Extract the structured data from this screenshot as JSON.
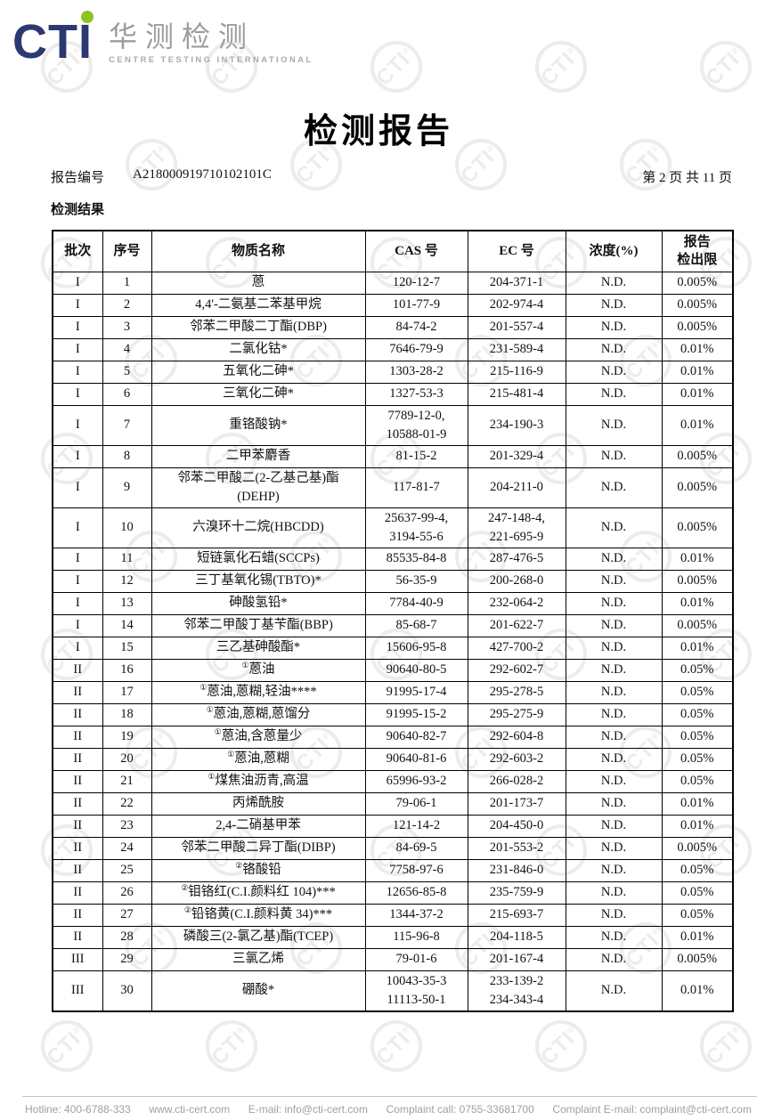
{
  "brand": {
    "acronym": "CTI",
    "name_cn": "华测检测",
    "name_en": "CENTRE TESTING INTERNATIONAL",
    "navy_color": "#2b3871",
    "green_color": "#8fc31f"
  },
  "doc": {
    "title": "检测报告",
    "report_no_label": "报告编号",
    "report_no": "A218000919710102101C",
    "page_info": "第 2 页  共 11 页",
    "section_title": "检测结果"
  },
  "table": {
    "headers": [
      "批次",
      "序号",
      "物质名称",
      "CAS 号",
      "EC 号",
      "浓度(%)",
      "报告\n检出限"
    ],
    "rows": [
      {
        "batch": "I",
        "no": "1",
        "sup": "",
        "name": "蒽",
        "cas": "120-12-7",
        "ec": "204-371-1",
        "conc": "N.D.",
        "limit": "0.005%"
      },
      {
        "batch": "I",
        "no": "2",
        "sup": "",
        "name": "4,4'-二氨基二苯基甲烷",
        "cas": "101-77-9",
        "ec": "202-974-4",
        "conc": "N.D.",
        "limit": "0.005%"
      },
      {
        "batch": "I",
        "no": "3",
        "sup": "",
        "name": "邻苯二甲酸二丁酯(DBP)",
        "cas": "84-74-2",
        "ec": "201-557-4",
        "conc": "N.D.",
        "limit": "0.005%"
      },
      {
        "batch": "I",
        "no": "4",
        "sup": "",
        "name": "二氯化钴*",
        "cas": "7646-79-9",
        "ec": "231-589-4",
        "conc": "N.D.",
        "limit": "0.01%"
      },
      {
        "batch": "I",
        "no": "5",
        "sup": "",
        "name": "五氧化二砷*",
        "cas": "1303-28-2",
        "ec": "215-116-9",
        "conc": "N.D.",
        "limit": "0.01%"
      },
      {
        "batch": "I",
        "no": "6",
        "sup": "",
        "name": "三氧化二砷*",
        "cas": "1327-53-3",
        "ec": "215-481-4",
        "conc": "N.D.",
        "limit": "0.01%"
      },
      {
        "batch": "I",
        "no": "7",
        "sup": "",
        "name": "重铬酸钠*",
        "cas": "7789-12-0,\n10588-01-9",
        "ec": "234-190-3",
        "conc": "N.D.",
        "limit": "0.01%"
      },
      {
        "batch": "I",
        "no": "8",
        "sup": "",
        "name": "二甲苯麝香",
        "cas": "81-15-2",
        "ec": "201-329-4",
        "conc": "N.D.",
        "limit": "0.005%"
      },
      {
        "batch": "I",
        "no": "9",
        "sup": "",
        "name": "邻苯二甲酸二(2-乙基己基)酯\n(DEHP)",
        "cas": "117-81-7",
        "ec": "204-211-0",
        "conc": "N.D.",
        "limit": "0.005%"
      },
      {
        "batch": "I",
        "no": "10",
        "sup": "",
        "name": "六溴环十二烷(HBCDD)",
        "cas": "25637-99-4,\n3194-55-6",
        "ec": "247-148-4,\n221-695-9",
        "conc": "N.D.",
        "limit": "0.005%"
      },
      {
        "batch": "I",
        "no": "11",
        "sup": "",
        "name": "短链氯化石蜡(SCCPs)",
        "cas": "85535-84-8",
        "ec": "287-476-5",
        "conc": "N.D.",
        "limit": "0.01%"
      },
      {
        "batch": "I",
        "no": "12",
        "sup": "",
        "name": "三丁基氧化锡(TBTO)*",
        "cas": "56-35-9",
        "ec": "200-268-0",
        "conc": "N.D.",
        "limit": "0.005%"
      },
      {
        "batch": "I",
        "no": "13",
        "sup": "",
        "name": "砷酸氢铅*",
        "cas": "7784-40-9",
        "ec": "232-064-2",
        "conc": "N.D.",
        "limit": "0.01%"
      },
      {
        "batch": "I",
        "no": "14",
        "sup": "",
        "name": "邻苯二甲酸丁基苄酯(BBP)",
        "cas": "85-68-7",
        "ec": "201-622-7",
        "conc": "N.D.",
        "limit": "0.005%"
      },
      {
        "batch": "I",
        "no": "15",
        "sup": "",
        "name": "三乙基砷酸酯*",
        "cas": "15606-95-8",
        "ec": "427-700-2",
        "conc": "N.D.",
        "limit": "0.01%"
      },
      {
        "batch": "II",
        "no": "16",
        "sup": "①",
        "name": "蒽油",
        "cas": "90640-80-5",
        "ec": "292-602-7",
        "conc": "N.D.",
        "limit": "0.05%"
      },
      {
        "batch": "II",
        "no": "17",
        "sup": "①",
        "name": "蒽油,蒽糊,轻油****",
        "cas": "91995-17-4",
        "ec": "295-278-5",
        "conc": "N.D.",
        "limit": "0.05%"
      },
      {
        "batch": "II",
        "no": "18",
        "sup": "①",
        "name": "蒽油,蒽糊,蒽馏分",
        "cas": "91995-15-2",
        "ec": "295-275-9",
        "conc": "N.D.",
        "limit": "0.05%"
      },
      {
        "batch": "II",
        "no": "19",
        "sup": "①",
        "name": "蒽油,含蒽量少",
        "cas": "90640-82-7",
        "ec": "292-604-8",
        "conc": "N.D.",
        "limit": "0.05%"
      },
      {
        "batch": "II",
        "no": "20",
        "sup": "①",
        "name": "蒽油,蒽糊",
        "cas": "90640-81-6",
        "ec": "292-603-2",
        "conc": "N.D.",
        "limit": "0.05%"
      },
      {
        "batch": "II",
        "no": "21",
        "sup": "①",
        "name": "煤焦油沥青,高温",
        "cas": "65996-93-2",
        "ec": "266-028-2",
        "conc": "N.D.",
        "limit": "0.05%"
      },
      {
        "batch": "II",
        "no": "22",
        "sup": "",
        "name": "丙烯酰胺",
        "cas": "79-06-1",
        "ec": "201-173-7",
        "conc": "N.D.",
        "limit": "0.01%"
      },
      {
        "batch": "II",
        "no": "23",
        "sup": "",
        "name": "2,4-二硝基甲苯",
        "cas": "121-14-2",
        "ec": "204-450-0",
        "conc": "N.D.",
        "limit": "0.01%"
      },
      {
        "batch": "II",
        "no": "24",
        "sup": "",
        "name": "邻苯二甲酸二异丁酯(DIBP)",
        "cas": "84-69-5",
        "ec": "201-553-2",
        "conc": "N.D.",
        "limit": "0.005%"
      },
      {
        "batch": "II",
        "no": "25",
        "sup": "②",
        "name": "铬酸铅",
        "cas": "7758-97-6",
        "ec": "231-846-0",
        "conc": "N.D.",
        "limit": "0.05%"
      },
      {
        "batch": "II",
        "no": "26",
        "sup": "②",
        "name": "钼铬红(C.I.颜料红 104)***",
        "cas": "12656-85-8",
        "ec": "235-759-9",
        "conc": "N.D.",
        "limit": "0.05%"
      },
      {
        "batch": "II",
        "no": "27",
        "sup": "②",
        "name": "铅铬黄(C.I.颜料黄 34)***",
        "cas": "1344-37-2",
        "ec": "215-693-7",
        "conc": "N.D.",
        "limit": "0.05%"
      },
      {
        "batch": "II",
        "no": "28",
        "sup": "",
        "name": "磷酸三(2-氯乙基)酯(TCEP)",
        "cas": "115-96-8",
        "ec": "204-118-5",
        "conc": "N.D.",
        "limit": "0.01%"
      },
      {
        "batch": "III",
        "no": "29",
        "sup": "",
        "name": "三氯乙烯",
        "cas": "79-01-6",
        "ec": "201-167-4",
        "conc": "N.D.",
        "limit": "0.005%"
      },
      {
        "batch": "III",
        "no": "30",
        "sup": "",
        "name": "硼酸*",
        "cas": "10043-35-3\n11113-50-1",
        "ec": "233-139-2\n234-343-4",
        "conc": "N.D.",
        "limit": "0.01%"
      }
    ]
  },
  "footer": {
    "items": [
      "Hotline: 400-6788-333",
      "www.cti-cert.com",
      "E-mail: info@cti-cert.com",
      "Complaint call: 0755-33681700",
      "Complaint E-mail: complaint@cti-cert.com"
    ]
  },
  "watermark": {
    "text": "CTI",
    "reg_mark": "®"
  }
}
